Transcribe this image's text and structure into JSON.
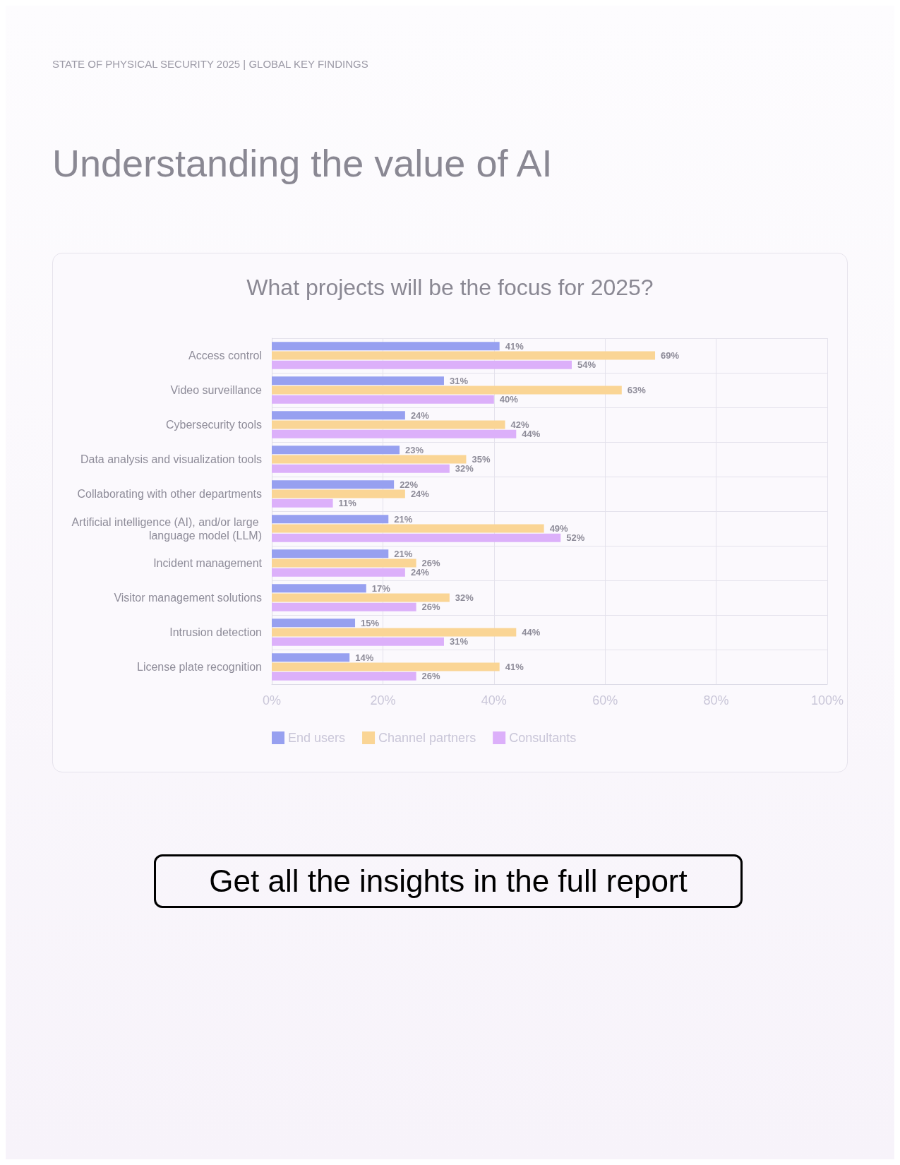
{
  "chart_data": {
    "type": "bar",
    "orientation": "horizontal",
    "title": "Understanding the value of AI",
    "subtitle": "What projects will be the focus for 2025?",
    "annotations": [
      "STATE OF PHYSICAL SECURITY 2025 | GLOBAL KEY FINDINGS",
      "Get all the insights in the full report"
    ],
    "categories": [
      "Access control",
      "Video surveillance",
      "Cybersecurity tools",
      "Data analysis and visualization tools",
      "Collaborating with other departments",
      "Artificial intelligence (AI), and/or large language model (LLM)",
      "Incident management",
      "Visitor management solutions",
      "Intrusion detection",
      "License plate recognition"
    ],
    "series": [
      {
        "name": "End users",
        "color": "#97a0f0",
        "values": [
          41,
          31,
          24,
          23,
          22,
          21,
          21,
          17,
          15,
          14
        ],
        "value_labels": [
          "41%",
          "31%",
          "24%",
          "23%",
          "22%",
          "21%",
          "21%",
          "17%",
          "15%",
          "14%"
        ]
      },
      {
        "name": "Channel partners",
        "color": "#fad595",
        "values": [
          69,
          63,
          42,
          35,
          24,
          49,
          26,
          32,
          44,
          41
        ],
        "value_labels": [
          "69%",
          "63%",
          "42%",
          "35%",
          "24%",
          "49%",
          "26%",
          "32%",
          "44%",
          "41%"
        ]
      },
      {
        "name": "Consultants",
        "color": "#dcb0fa",
        "values": [
          54,
          40,
          44,
          32,
          11,
          52,
          24,
          26,
          31,
          26
        ],
        "value_labels": [
          "54%",
          "40%",
          "44%",
          "32%",
          "11%",
          "52%",
          "24%",
          "26%",
          "31%",
          "26%"
        ]
      }
    ],
    "xlim": [
      0,
      100
    ],
    "xticks": [
      {
        "value": 0,
        "label": "0%"
      },
      {
        "value": 20,
        "label": "20%"
      },
      {
        "value": 40,
        "label": "40%"
      },
      {
        "value": 60,
        "label": "60%"
      },
      {
        "value": 80,
        "label": "80%"
      },
      {
        "value": 100,
        "label": "100%"
      }
    ],
    "grid": true,
    "legend": "bottom"
  }
}
